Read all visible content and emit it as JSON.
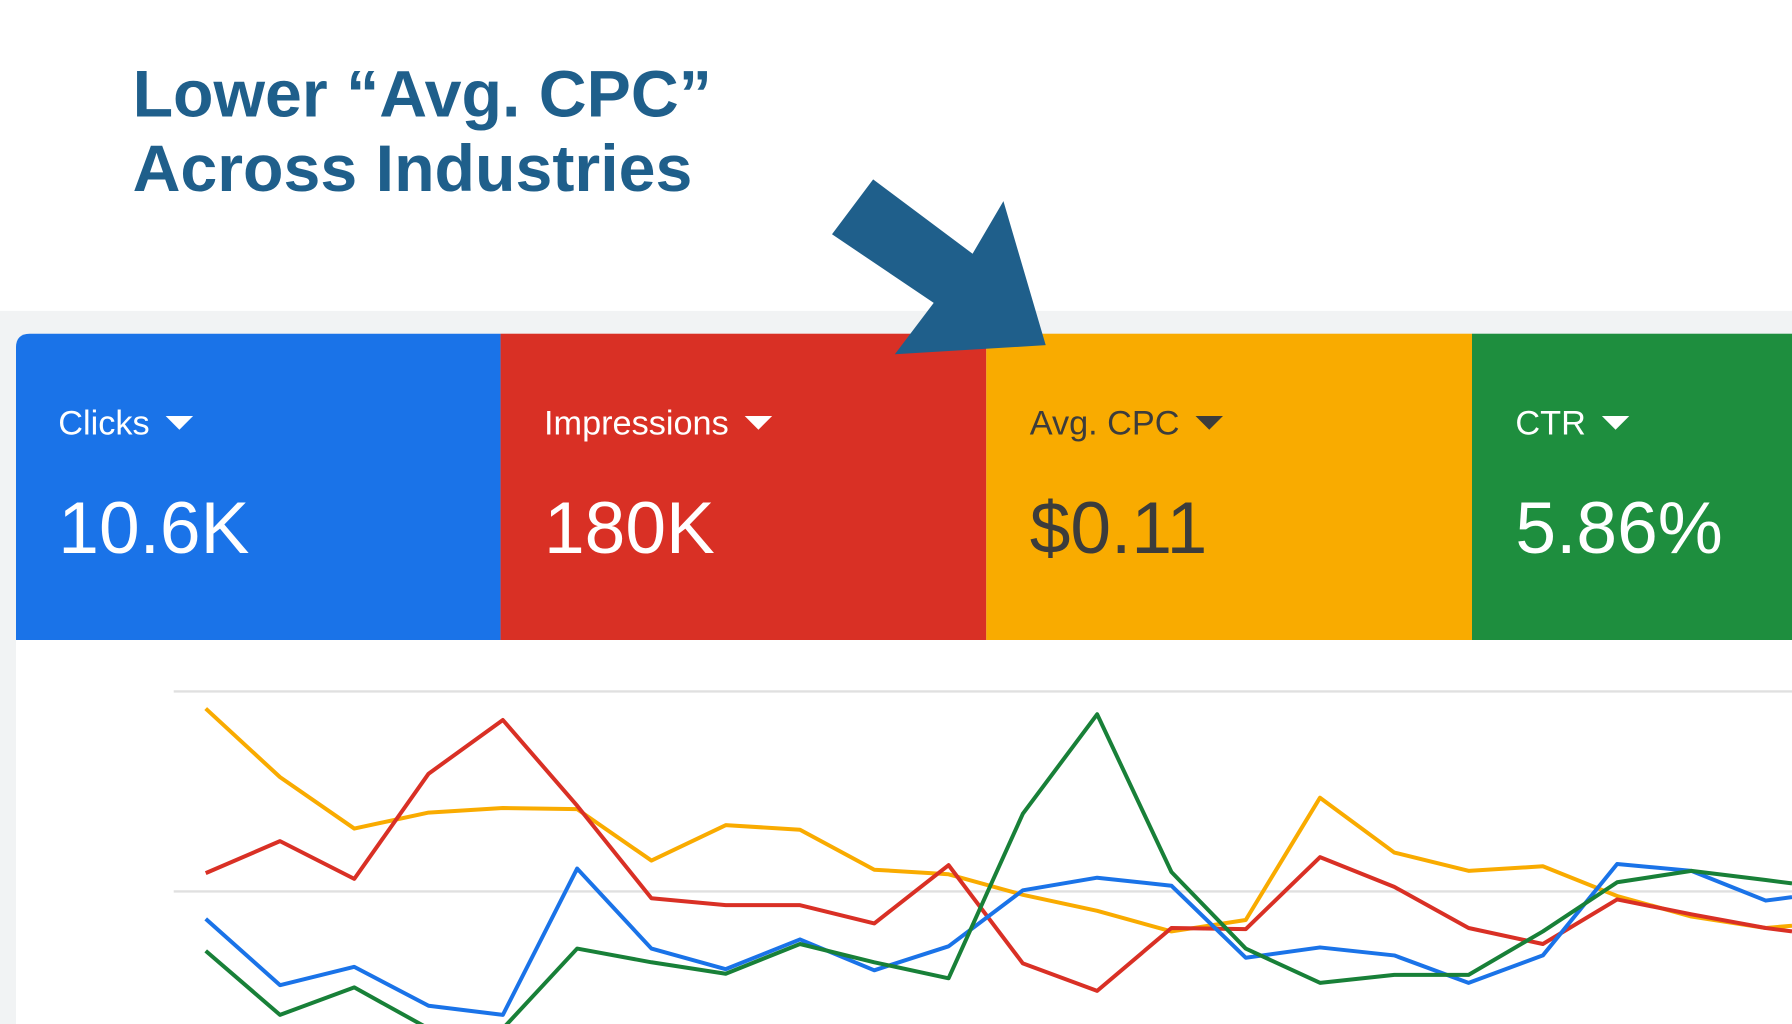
{
  "header": {
    "title_lines": [
      "Lower “Avg. CPC”",
      "Across Industries"
    ]
  },
  "metrics": [
    {
      "label": "Clicks",
      "value": "10.6K"
    },
    {
      "label": "Impressions",
      "value": "180K"
    },
    {
      "label": "Avg. CPC",
      "value": "$0.11"
    },
    {
      "label": "CTR",
      "value": "5.86%"
    }
  ]
}
